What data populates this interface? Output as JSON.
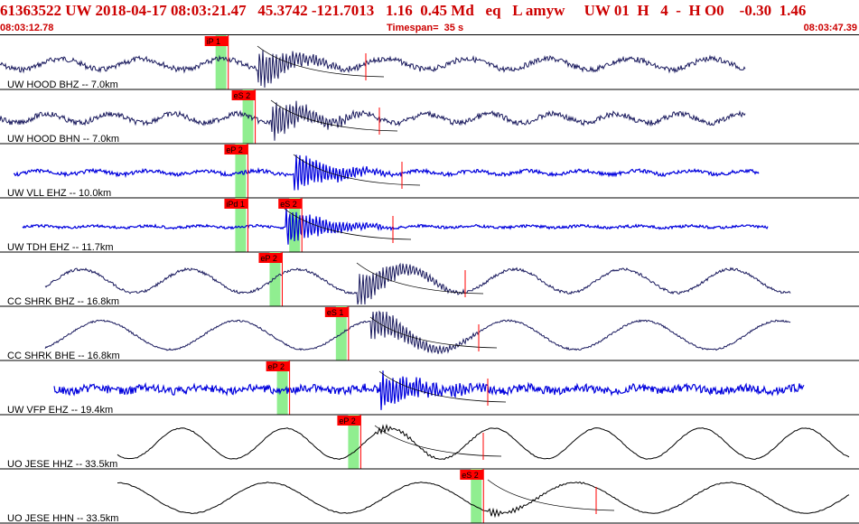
{
  "header": {
    "event_line": "61363522 UW 2018-04-17 08:03:21.47   45.3742 -121.7013   1.16  0.45 Md   eq   L amyw     UW 01  H   4  -  H O0    -0.30  1.46"
  },
  "subheader": {
    "start_time": "08:03:12.78",
    "timespan": "Timespan=  35 s",
    "end_time": "08:03:47.39"
  },
  "colors": {
    "pick_flag": "#ff0000",
    "pick_window": "#90ee90",
    "trace_dark": "#1a1a5e",
    "trace_blue": "#0000dd",
    "trace_black": "#000000",
    "divider": "#000000"
  },
  "channels": [
    {
      "label": "UW HOOD BHZ -- 7.0km",
      "color": "#1a1a5e",
      "picks": [
        {
          "text": "iP 1",
          "t": 9.3
        }
      ]
    },
    {
      "label": "UW HOOD BHN -- 7.0km",
      "color": "#1a1a5e",
      "picks": [
        {
          "text": "eS 2",
          "t": 10.4
        }
      ]
    },
    {
      "label": "UW VLL EHZ -- 10.0km",
      "color": "#0000dd",
      "picks": [
        {
          "text": "eP 2",
          "t": 10.1
        }
      ]
    },
    {
      "label": "UW TDH EHZ -- 11.7km",
      "color": "#0000dd",
      "picks": [
        {
          "text": "iPd 1",
          "t": 10.1
        },
        {
          "text": "eS 2",
          "t": 12.3
        }
      ]
    },
    {
      "label": "CC SHRK BHZ -- 16.8km",
      "color": "#1a1a5e",
      "picks": [
        {
          "text": "eP 2",
          "t": 11.5
        }
      ]
    },
    {
      "label": "CC SHRK BHE -- 16.8km",
      "color": "#1a1a5e",
      "picks": [
        {
          "text": "eS 1",
          "t": 14.2
        }
      ]
    },
    {
      "label": "UW VFP EHZ -- 19.4km",
      "color": "#0000dd",
      "picks": [
        {
          "text": "eP 2",
          "t": 11.8
        }
      ]
    },
    {
      "label": "UO JESE HHZ -- 33.5km",
      "color": "#000000",
      "picks": [
        {
          "text": "eP 2",
          "t": 14.7
        }
      ]
    },
    {
      "label": "UO JESE HHN -- 33.5km",
      "color": "#000000",
      "picks": [
        {
          "text": "eS 2",
          "t": 19.7
        }
      ]
    }
  ]
}
